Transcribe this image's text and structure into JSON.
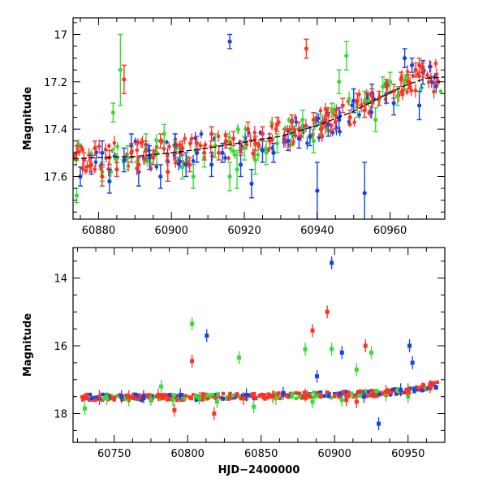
{
  "colors": {
    "green": "#33dd33",
    "blue": "#1144ee",
    "red": "#ff3322",
    "fit": "#000000"
  },
  "chart_data": [
    {
      "type": "scatter",
      "panel": "top",
      "title": "",
      "xlabel": "",
      "ylabel": "Magnitude",
      "xlim": [
        60873,
        60975
      ],
      "ylim": [
        17.78,
        16.93
      ],
      "y_inverted": true,
      "x_ticks": [
        60880,
        60900,
        60920,
        60940,
        60960
      ],
      "y_ticks": [
        17,
        17.2,
        17.4,
        17.6
      ],
      "series": [
        {
          "name": "green",
          "color_key": "green",
          "marker": "circle",
          "points": [
            [
              60874,
              17.68,
              0.03
            ],
            [
              60881,
              17.58,
              0.04
            ],
            [
              60884,
              17.33,
              0.04
            ],
            [
              60886,
              17.15,
              0.15
            ],
            [
              60888,
              17.52,
              0.05
            ],
            [
              60893,
              17.48,
              0.06
            ],
            [
              60896,
              17.5,
              0.05
            ],
            [
              60898,
              17.42,
              0.04
            ],
            [
              60903,
              17.56,
              0.05
            ],
            [
              60906,
              17.6,
              0.05
            ],
            [
              60909,
              17.52,
              0.04
            ],
            [
              60912,
              17.47,
              0.05
            ],
            [
              60916,
              17.6,
              0.06
            ],
            [
              60918,
              17.57,
              0.08
            ],
            [
              60920,
              17.48,
              0.05
            ],
            [
              60923,
              17.53,
              0.06
            ],
            [
              60926,
              17.5,
              0.05
            ],
            [
              60929,
              17.46,
              0.04
            ],
            [
              60933,
              17.42,
              0.05
            ],
            [
              60936,
              17.36,
              0.04
            ],
            [
              60939,
              17.45,
              0.05
            ],
            [
              60941,
              17.38,
              0.04
            ],
            [
              60944,
              17.32,
              0.03
            ],
            [
              60946,
              17.2,
              0.05
            ],
            [
              60948,
              17.09,
              0.06
            ],
            [
              60951,
              17.3,
              0.05
            ],
            [
              60953,
              17.28,
              0.04
            ],
            [
              60956,
              17.36,
              0.05
            ],
            [
              60958,
              17.22,
              0.04
            ],
            [
              60960,
              17.2,
              0.04
            ],
            [
              60962,
              17.26,
              0.04
            ],
            [
              60964,
              17.2,
              0.03
            ]
          ]
        },
        {
          "name": "blue",
          "color_key": "blue",
          "marker": "circle",
          "points": [
            [
              60875,
              17.6,
              0.04
            ],
            [
              60878,
              17.55,
              0.04
            ],
            [
              60881,
              17.5,
              0.05
            ],
            [
              60883,
              17.62,
              0.05
            ],
            [
              60887,
              17.53,
              0.05
            ],
            [
              60889,
              17.47,
              0.05
            ],
            [
              60891,
              17.58,
              0.06
            ],
            [
              60894,
              17.52,
              0.05
            ],
            [
              60897,
              17.6,
              0.05
            ],
            [
              60901,
              17.47,
              0.05
            ],
            [
              60904,
              17.55,
              0.05
            ],
            [
              60907,
              17.5,
              0.04
            ],
            [
              60911,
              17.55,
              0.05
            ],
            [
              60914,
              17.5,
              0.04
            ],
            [
              60916,
              17.03,
              0.03
            ],
            [
              60919,
              17.55,
              0.05
            ],
            [
              60922,
              17.63,
              0.06
            ],
            [
              60925,
              17.49,
              0.05
            ],
            [
              60928,
              17.5,
              0.04
            ],
            [
              60932,
              17.45,
              0.04
            ],
            [
              60935,
              17.44,
              0.04
            ],
            [
              60938,
              17.43,
              0.04
            ],
            [
              60940,
              17.66,
              0.12
            ],
            [
              60943,
              17.38,
              0.05
            ],
            [
              60946,
              17.36,
              0.05
            ],
            [
              60950,
              17.28,
              0.05
            ],
            [
              60953,
              17.67,
              0.13
            ],
            [
              60955,
              17.25,
              0.04
            ],
            [
              60959,
              17.25,
              0.04
            ],
            [
              60961,
              17.29,
              0.05
            ],
            [
              60964,
              17.1,
              0.04
            ],
            [
              60966,
              17.13,
              0.03
            ],
            [
              60968,
              17.3,
              0.06
            ],
            [
              60969,
              17.16,
              0.05
            ]
          ]
        },
        {
          "name": "red",
          "color_key": "red",
          "marker": "circle",
          "points": [
            [
              60874,
              17.5,
              0.03
            ],
            [
              60876,
              17.53,
              0.03
            ],
            [
              60878,
              17.55,
              0.03
            ],
            [
              60879,
              17.48,
              0.03
            ],
            [
              60881,
              17.6,
              0.04
            ],
            [
              60883,
              17.52,
              0.03
            ],
            [
              60885,
              17.57,
              0.03
            ],
            [
              60887,
              17.19,
              0.06
            ],
            [
              60889,
              17.5,
              0.04
            ],
            [
              60891,
              17.55,
              0.03
            ],
            [
              60893,
              17.49,
              0.04
            ],
            [
              60895,
              17.52,
              0.03
            ],
            [
              60897,
              17.45,
              0.03
            ],
            [
              60899,
              17.58,
              0.04
            ],
            [
              60901,
              17.5,
              0.03
            ],
            [
              60903,
              17.48,
              0.03
            ],
            [
              60905,
              17.55,
              0.03
            ],
            [
              60907,
              17.46,
              0.03
            ],
            [
              60909,
              17.5,
              0.03
            ],
            [
              60911,
              17.42,
              0.03
            ],
            [
              60913,
              17.5,
              0.03
            ],
            [
              60915,
              17.45,
              0.03
            ],
            [
              60917,
              17.44,
              0.03
            ],
            [
              60919,
              17.48,
              0.03
            ],
            [
              60921,
              17.4,
              0.03
            ],
            [
              60923,
              17.46,
              0.03
            ],
            [
              60925,
              17.42,
              0.03
            ],
            [
              60927,
              17.45,
              0.03
            ],
            [
              60929,
              17.38,
              0.03
            ],
            [
              60931,
              17.43,
              0.03
            ],
            [
              60933,
              17.37,
              0.03
            ],
            [
              60935,
              17.4,
              0.03
            ],
            [
              60937,
              17.06,
              0.04
            ],
            [
              60939,
              17.36,
              0.03
            ],
            [
              60941,
              17.4,
              0.03
            ],
            [
              60943,
              17.34,
              0.03
            ],
            [
              60945,
              17.37,
              0.03
            ],
            [
              60947,
              17.3,
              0.03
            ],
            [
              60949,
              17.35,
              0.03
            ],
            [
              60951,
              17.28,
              0.03
            ],
            [
              60953,
              17.32,
              0.03
            ],
            [
              60955,
              17.26,
              0.03
            ],
            [
              60957,
              17.27,
              0.03
            ],
            [
              60959,
              17.22,
              0.03
            ],
            [
              60961,
              17.24,
              0.03
            ],
            [
              60963,
              17.19,
              0.03
            ],
            [
              60965,
              17.2,
              0.03
            ],
            [
              60967,
              17.15,
              0.03
            ],
            [
              60968,
              17.13,
              0.03
            ],
            [
              60969,
              17.15,
              0.03
            ]
          ]
        }
      ],
      "fit_curve": [
        [
          60873,
          17.525
        ],
        [
          60880,
          17.52
        ],
        [
          60890,
          17.515
        ],
        [
          60900,
          17.5
        ],
        [
          60910,
          17.48
        ],
        [
          60920,
          17.455
        ],
        [
          60930,
          17.43
        ],
        [
          60940,
          17.385
        ],
        [
          60950,
          17.325
        ],
        [
          60960,
          17.245
        ],
        [
          60965,
          17.21
        ],
        [
          60970,
          17.185
        ],
        [
          60975,
          17.18
        ]
      ]
    },
    {
      "type": "scatter",
      "panel": "bottom",
      "title": "",
      "xlabel": "HJD−2400000",
      "ylabel": "Magnitude",
      "xlim": [
        60722,
        60975
      ],
      "ylim": [
        18.85,
        13.1
      ],
      "y_inverted": true,
      "x_ticks": [
        60750,
        60800,
        60850,
        60900,
        60950
      ],
      "y_ticks": [
        14,
        16,
        18
      ],
      "series": [
        {
          "name": "green",
          "color_key": "green",
          "marker": "square",
          "points": [
            [
              60730,
              17.85
            ],
            [
              60745,
              17.55
            ],
            [
              60760,
              17.6
            ],
            [
              60775,
              17.58
            ],
            [
              60782,
              17.2
            ],
            [
              60790,
              17.6
            ],
            [
              60803,
              15.35
            ],
            [
              60808,
              17.55
            ],
            [
              60820,
              17.65
            ],
            [
              60835,
              16.35
            ],
            [
              60845,
              17.8
            ],
            [
              60860,
              17.55
            ],
            [
              60880,
              16.1
            ],
            [
              60885,
              17.65
            ],
            [
              60898,
              16.1
            ],
            [
              60905,
              17.6
            ],
            [
              60915,
              16.7
            ],
            [
              60925,
              16.2
            ],
            [
              60935,
              17.45
            ],
            [
              60950,
              17.5
            ]
          ]
        },
        {
          "name": "blue",
          "color_key": "blue",
          "marker": "square",
          "points": [
            [
              60740,
              17.55
            ],
            [
              60755,
              17.5
            ],
            [
              60770,
              17.5
            ],
            [
              60795,
              17.45
            ],
            [
              60813,
              15.7
            ],
            [
              60840,
              17.45
            ],
            [
              60865,
              17.4
            ],
            [
              60888,
              16.9
            ],
            [
              60898,
              13.55
            ],
            [
              60905,
              16.2
            ],
            [
              60920,
              17.5
            ],
            [
              60930,
              18.3
            ],
            [
              60945,
              17.3
            ],
            [
              60951,
              16.0
            ],
            [
              60953,
              16.5
            ],
            [
              60965,
              17.2
            ]
          ]
        },
        {
          "name": "red",
          "color_key": "red",
          "marker": "square",
          "points": [
            [
              60740,
              17.5
            ],
            [
              60760,
              17.5
            ],
            [
              60780,
              17.45
            ],
            [
              60791,
              17.9
            ],
            [
              60803,
              16.45
            ],
            [
              60818,
              18.0
            ],
            [
              60838,
              17.55
            ],
            [
              60858,
              17.5
            ],
            [
              60880,
              17.45
            ],
            [
              60885,
              15.55
            ],
            [
              60895,
              15.0
            ],
            [
              60908,
              17.6
            ],
            [
              60915,
              17.65
            ],
            [
              60921,
              16.0
            ],
            [
              60935,
              17.35
            ],
            [
              60950,
              17.3
            ],
            [
              60965,
              17.2
            ]
          ]
        },
        {
          "name": "band",
          "color_key": "red",
          "marker": "band",
          "points": [
            [
              60728,
              17.52
            ],
            [
              60760,
              17.52
            ],
            [
              60800,
              17.52
            ],
            [
              60850,
              17.48
            ],
            [
              60900,
              17.45
            ],
            [
              60930,
              17.4
            ],
            [
              60950,
              17.32
            ],
            [
              60970,
              17.15
            ]
          ]
        }
      ]
    }
  ]
}
